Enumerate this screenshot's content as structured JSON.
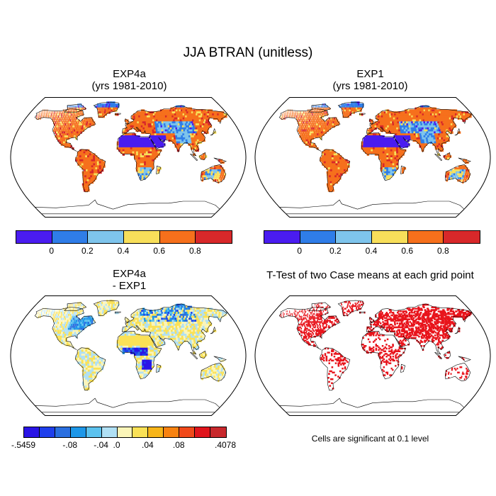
{
  "figure": {
    "title": "JJA BTRAN (unitless)"
  },
  "panels": [
    {
      "id": "exp4a",
      "title_line1": "EXP4a",
      "title_line2": "(yrs 1981-2010)",
      "kind": "btran",
      "seed": 11
    },
    {
      "id": "exp1",
      "title_line1": "EXP1",
      "title_line2": "(yrs 1981-2010)",
      "kind": "btran",
      "seed": 23
    },
    {
      "id": "diff",
      "title_line1": "EXP4a",
      "title_line2": "- EXP1",
      "kind": "diff",
      "seed": 37
    },
    {
      "id": "ttest",
      "title_line1": "T-Test of two Case means at each grid point",
      "title_line2": "",
      "kind": "ttest",
      "seed": 51
    }
  ],
  "colorbar_btran": {
    "colors": [
      "#4a1cf0",
      "#2f7de8",
      "#7ec4ec",
      "#f8df5a",
      "#f6701c",
      "#d8282a"
    ],
    "tick_labels": [
      "0",
      "0.2",
      "0.4",
      "0.6",
      "0.8"
    ]
  },
  "colorbar_diff": {
    "colors": [
      "#2a14e6",
      "#1f3fec",
      "#2a6fe0",
      "#1d97e8",
      "#5cc2ee",
      "#b0e0f4",
      "#fbf5b8",
      "#fae156",
      "#f7b519",
      "#f78210",
      "#f0491a",
      "#e0141c",
      "#c8282c"
    ],
    "tick_labels": [
      ".5459",
      "-.08",
      "-.04",
      ".0",
      ".04",
      ".08",
      ".4078"
    ],
    "tick_labels_signed": [
      "-.5459",
      "-.08",
      "-.04",
      ".0",
      ".04",
      ".08",
      ".4078"
    ]
  },
  "significance_note": "Cells are significant at 0.1 level",
  "significance_color": "#e8141c",
  "map_style": {
    "ocean": "#ffffff",
    "outline": "#000000"
  }
}
